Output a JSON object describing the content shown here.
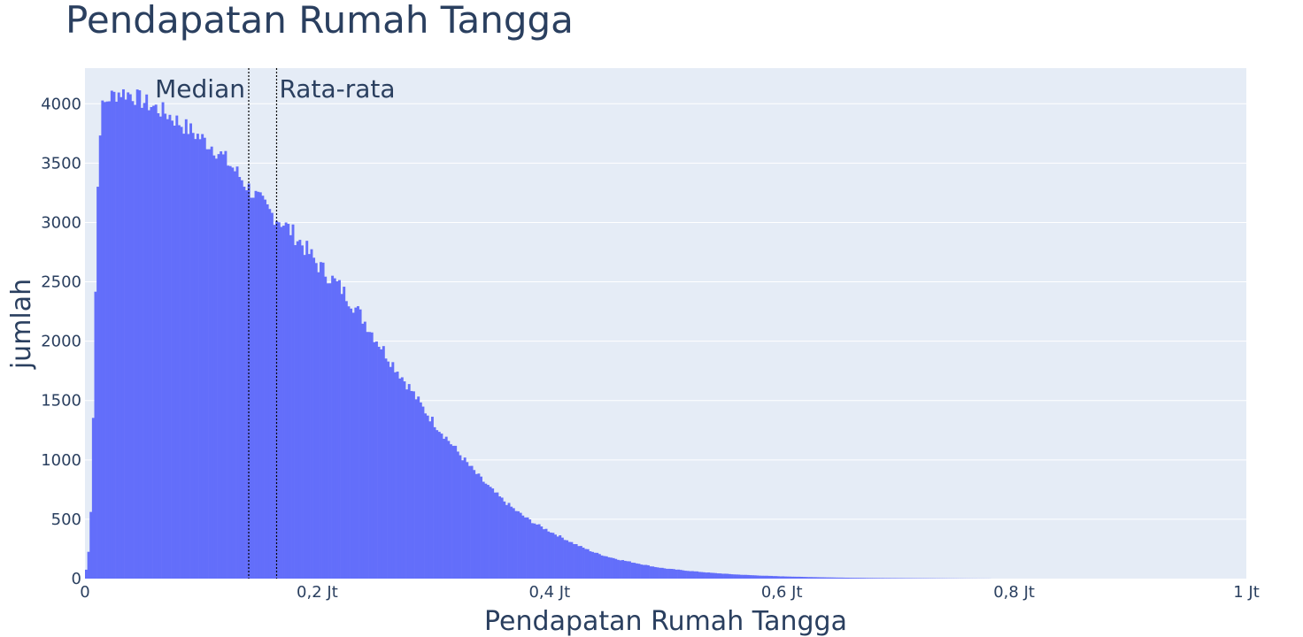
{
  "chart_data": {
    "type": "bar",
    "title": "Pendapatan Rumah Tangga",
    "xlabel": "Pendapatan Rumah Tangga",
    "ylabel": "jumlah",
    "xlim": [
      0,
      1000000
    ],
    "ylim": [
      0,
      4300
    ],
    "x_ticks": [
      {
        "value": 0,
        "label": "0"
      },
      {
        "value": 200000,
        "label": "0,2 Jt"
      },
      {
        "value": 400000,
        "label": "0,4 Jt"
      },
      {
        "value": 600000,
        "label": "0,6 Jt"
      },
      {
        "value": 800000,
        "label": "0,8 Jt"
      },
      {
        "value": 1000000,
        "label": "1 Jt"
      }
    ],
    "y_ticks": [
      {
        "value": 0,
        "label": "0"
      },
      {
        "value": 500,
        "label": "500"
      },
      {
        "value": 1000,
        "label": "1000"
      },
      {
        "value": 1500,
        "label": "1500"
      },
      {
        "value": 2000,
        "label": "2000"
      },
      {
        "value": 2500,
        "label": "2500"
      },
      {
        "value": 3000,
        "label": "3000"
      },
      {
        "value": 3500,
        "label": "3500"
      },
      {
        "value": 4000,
        "label": "4000"
      }
    ],
    "grid": true,
    "bar_color": "#636efa",
    "plot_bg": "#e5ecf6",
    "histogram_outline": [
      [
        0,
        0
      ],
      [
        2000,
        150
      ],
      [
        4000,
        300
      ],
      [
        6000,
        850
      ],
      [
        8000,
        1900
      ],
      [
        10000,
        2950
      ],
      [
        12000,
        3650
      ],
      [
        14000,
        3950
      ],
      [
        20000,
        4050
      ],
      [
        30000,
        4100
      ],
      [
        40000,
        4080
      ],
      [
        50000,
        4020
      ],
      [
        60000,
        3970
      ],
      [
        70000,
        3920
      ],
      [
        80000,
        3850
      ],
      [
        90000,
        3780
      ],
      [
        100000,
        3710
      ],
      [
        110000,
        3640
      ],
      [
        120000,
        3540
      ],
      [
        130000,
        3430
      ],
      [
        140000,
        3300
      ],
      [
        150000,
        3190
      ],
      [
        160000,
        3080
      ],
      [
        170000,
        3000
      ],
      [
        180000,
        2900
      ],
      [
        190000,
        2780
      ],
      [
        200000,
        2650
      ],
      [
        210000,
        2550
      ],
      [
        220000,
        2450
      ],
      [
        230000,
        2320
      ],
      [
        240000,
        2180
      ],
      [
        250000,
        2030
      ],
      [
        260000,
        1880
      ],
      [
        270000,
        1740
      ],
      [
        280000,
        1600
      ],
      [
        290000,
        1450
      ],
      [
        300000,
        1320
      ],
      [
        310000,
        1200
      ],
      [
        320000,
        1080
      ],
      [
        330000,
        960
      ],
      [
        340000,
        850
      ],
      [
        350000,
        750
      ],
      [
        360000,
        660
      ],
      [
        370000,
        580
      ],
      [
        380000,
        510
      ],
      [
        390000,
        450
      ],
      [
        400000,
        400
      ],
      [
        410000,
        350
      ],
      [
        420000,
        300
      ],
      [
        430000,
        255
      ],
      [
        440000,
        215
      ],
      [
        450000,
        185
      ],
      [
        460000,
        160
      ],
      [
        470000,
        140
      ],
      [
        480000,
        120
      ],
      [
        490000,
        100
      ],
      [
        500000,
        85
      ],
      [
        520000,
        65
      ],
      [
        540000,
        48
      ],
      [
        560000,
        35
      ],
      [
        580000,
        26
      ],
      [
        600000,
        19
      ],
      [
        620000,
        14
      ],
      [
        640000,
        10
      ],
      [
        660000,
        7
      ],
      [
        680000,
        5
      ],
      [
        700000,
        4
      ],
      [
        720000,
        3
      ],
      [
        740000,
        2
      ],
      [
        760000,
        1
      ],
      [
        800000,
        0
      ],
      [
        1000000,
        0
      ]
    ],
    "annotations": [
      {
        "x": 141000,
        "label": "Median",
        "side": "left"
      },
      {
        "x": 165000,
        "label": "Rata-rata",
        "side": "right"
      }
    ]
  }
}
